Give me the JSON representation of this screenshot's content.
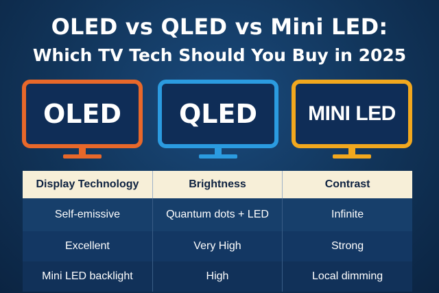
{
  "header": {
    "title_line1": "OLED vs QLED vs Mini LED:",
    "title_line2": "Which TV Tech Should You Buy in 2025"
  },
  "tvs": [
    {
      "label": "OLED",
      "color": "#e8682a"
    },
    {
      "label": "QLED",
      "color": "#2b9be0"
    },
    {
      "label": "MINI LED",
      "color": "#f2a81e"
    }
  ],
  "table": {
    "headers": [
      "Display Technology",
      "Brightness",
      "Contrast"
    ],
    "rows": [
      [
        "Self-emissive",
        "Quantum dots + LED",
        "Infinite"
      ],
      [
        "Excellent",
        "Very High",
        "Strong"
      ],
      [
        "Mini LED backlight",
        "High",
        "Local dimming"
      ]
    ]
  }
}
